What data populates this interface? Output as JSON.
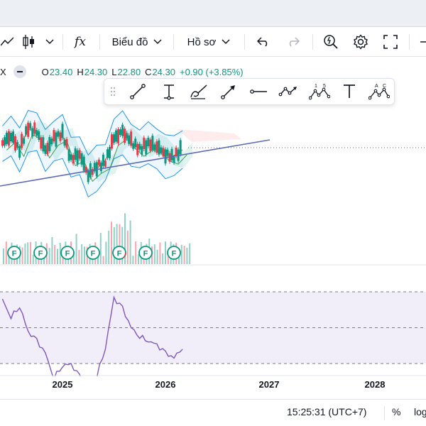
{
  "toolbar": {
    "chart_type_label": "Biểu đồ",
    "profile_label": "Hồ sơ",
    "indicator_symbol": "fx"
  },
  "legend": {
    "symbol_fragment": "X",
    "open_key": "O",
    "open": "23.40",
    "high_key": "H",
    "high": "24.30",
    "low_key": "L",
    "low": "22.80",
    "close_key": "C",
    "close": "24.30",
    "change": "+0.90 (+3.85%)"
  },
  "drawing_tools": [
    {
      "name": "trend-line"
    },
    {
      "name": "vertical-range"
    },
    {
      "name": "brush"
    },
    {
      "name": "arrow"
    },
    {
      "name": "horizontal-ray"
    },
    {
      "name": "path"
    },
    {
      "name": "elliott-wave"
    },
    {
      "name": "text"
    },
    {
      "name": "abcd-pattern"
    }
  ],
  "event_marker_label": "F",
  "time_axis": {
    "labels": [
      "2025",
      "2026",
      "2027",
      "2028"
    ]
  },
  "status_bar": {
    "clock": "15:25:31 (UTC+7)",
    "percent": "%",
    "log_fragment": "log"
  },
  "chart_data": {
    "type": "line",
    "title": "",
    "xlabel": "",
    "ylabel": "",
    "x_range": [
      "2024-05",
      "2028-05"
    ],
    "price": {
      "series": [
        {
          "name": "",
          "x": [
            "2024-06",
            "2024-07",
            "2024-08",
            "2024-09",
            "2024-10",
            "2024-11",
            "2024-12",
            "2025-01",
            "2025-02",
            "2025-03",
            "2025-04",
            "2025-05",
            "2025-06",
            "2025-07",
            "2025-08",
            "2025-09",
            "2025-10",
            "2025-11",
            "2025-12",
            "2026-01",
            "2026-02",
            "2026-03"
          ],
          "values": [
            24.6,
            25.1,
            24.2,
            25.6,
            25.3,
            24.1,
            24.9,
            25.2,
            23.6,
            23.9,
            22.6,
            23.1,
            23.4,
            24.9,
            25.3,
            24.7,
            24.2,
            24.6,
            24.4,
            23.9,
            23.7,
            24.3
          ]
        }
      ],
      "last_close": 24.3
    },
    "rsi": {
      "x": [
        "2024-06",
        "2024-07",
        "2024-08",
        "2024-09",
        "2024-10",
        "2024-11",
        "2024-12",
        "2025-01",
        "2025-02",
        "2025-03",
        "2025-04",
        "2025-05",
        "2025-06",
        "2025-07",
        "2025-08",
        "2025-09",
        "2025-10",
        "2025-11",
        "2025-12",
        "2026-01",
        "2026-02",
        "2026-03"
      ],
      "values": [
        66,
        55,
        61,
        48,
        44,
        36,
        21,
        28,
        30,
        24,
        14,
        22,
        38,
        67,
        62,
        50,
        44,
        42,
        41,
        37,
        33,
        38
      ],
      "upper_band": 70,
      "lower_band": 30,
      "mid": 50
    },
    "volume_markers_count": 7
  }
}
